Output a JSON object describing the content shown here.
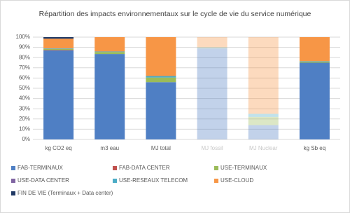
{
  "chart_data": {
    "type": "stacked_bar",
    "title": "Répartition des impacts environnementaux sur le cycle de vie du service numérique",
    "categories": [
      "kg CO2 eq",
      "m3 eau",
      "MJ total",
      "MJ fossil",
      "MJ Nuclear",
      "kg Sb eq"
    ],
    "dimmed": [
      false,
      false,
      false,
      true,
      true,
      false
    ],
    "series": [
      {
        "name": "FAB-TERMINAUX",
        "color": "#4f7fc4",
        "values": [
          87,
          83.5,
          56,
          89,
          14,
          75
        ]
      },
      {
        "name": "FAB-DATA CENTER",
        "color": "#c0504d",
        "values": [
          0.5,
          0,
          0,
          0,
          0,
          0
        ]
      },
      {
        "name": "USE-TERMINAUX",
        "color": "#9bbb59",
        "values": [
          1,
          2,
          4.5,
          0.5,
          8,
          1
        ]
      },
      {
        "name": "USE-DATA CENTER",
        "color": "#8064a2",
        "values": [
          0,
          0,
          0,
          0,
          0,
          0
        ]
      },
      {
        "name": "USE-RESEAUX TELECOM",
        "color": "#4bacc6",
        "values": [
          0.5,
          0.5,
          1.5,
          0.5,
          3,
          0.5
        ]
      },
      {
        "name": "USE-CLOUD",
        "color": "#f79646",
        "values": [
          9.5,
          14,
          38,
          10,
          75,
          23.5
        ]
      },
      {
        "name": "FIN DE VIE (Terminaux + Data center)",
        "color": "#1f3864",
        "values": [
          1.5,
          0,
          0,
          0,
          0,
          0
        ]
      }
    ],
    "ylim": [
      0,
      100
    ],
    "yticks": [
      {
        "value": 0,
        "label": "0%"
      },
      {
        "value": 10,
        "label": "10%"
      },
      {
        "value": 20,
        "label": "20%"
      },
      {
        "value": 30,
        "label": "30%"
      },
      {
        "value": 40,
        "label": "40%"
      },
      {
        "value": 50,
        "label": "50%"
      },
      {
        "value": 60,
        "label": "60%"
      },
      {
        "value": 70,
        "label": "70%"
      },
      {
        "value": 80,
        "label": "80%"
      },
      {
        "value": 90,
        "label": "90%"
      },
      {
        "value": 100,
        "label": "100%"
      }
    ],
    "grid": true,
    "legend": "bottom"
  }
}
